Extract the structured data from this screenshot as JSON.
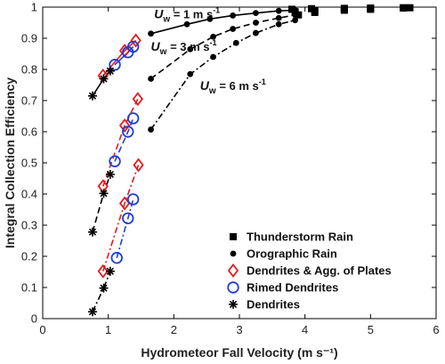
{
  "chart_data": {
    "type": "scatter",
    "xlabel": "Hydrometeor Fall Velocity (m s⁻¹)",
    "ylabel": "Integral Collection Efficiency",
    "xlim": [
      0,
      6
    ],
    "ylim": [
      0,
      1
    ],
    "xticks": [
      0,
      1,
      2,
      3,
      4,
      5,
      6
    ],
    "yticks": [
      0,
      0.1,
      0.2,
      0.3,
      0.4,
      0.5,
      0.6,
      0.7,
      0.8,
      0.9,
      1
    ],
    "grid": false,
    "legend_position": "bottom-right",
    "legend": [
      {
        "label": "Thunderstorm Rain",
        "marker": "square",
        "color": "#000000"
      },
      {
        "label": "Orographic Rain",
        "marker": "dot",
        "color": "#000000"
      },
      {
        "label": "Dendrites & Agg. of Plates",
        "marker": "diamond",
        "color": "#e41a1c"
      },
      {
        "label": "Rimed Dendrites",
        "marker": "circle",
        "color": "#1f3fd6"
      },
      {
        "label": "Dendrites",
        "marker": "asterisk",
        "color": "#000000"
      }
    ],
    "annotations": [
      {
        "label": "U",
        "sub": "w",
        "text": " = 1 m s",
        "sup": "-1",
        "ref_x": 1.7,
        "ref_y": 0.965
      },
      {
        "label": "U",
        "sub": "w",
        "text": " = 3 m s",
        "sup": "-1",
        "ref_x": 1.65,
        "ref_y": 0.86
      },
      {
        "label": "U",
        "sub": "w",
        "text": " = 6 m s",
        "sup": "-1",
        "ref_x": 2.4,
        "ref_y": 0.735
      }
    ],
    "series": [
      {
        "name": "Thunderstorm Rain",
        "group": "Uw=1",
        "marker": "square",
        "color": "#000000",
        "line": "none",
        "x": [
          3.8,
          4.1,
          4.6,
          5.0,
          5.5,
          5.6
        ],
        "y": [
          0.993,
          0.995,
          0.996,
          0.997,
          0.998,
          0.998
        ]
      },
      {
        "name": "Thunderstorm Rain",
        "group": "Uw=3",
        "marker": "square",
        "color": "#000000",
        "line": "none",
        "x": [
          3.85,
          4.15,
          4.6,
          5.0,
          5.5
        ],
        "y": [
          0.985,
          0.99,
          0.993,
          0.995,
          0.997
        ]
      },
      {
        "name": "Thunderstorm Rain",
        "group": "Uw=6",
        "marker": "square",
        "color": "#000000",
        "line": "none",
        "x": [
          3.9,
          4.15,
          4.6,
          5.0
        ],
        "y": [
          0.975,
          0.983,
          0.99,
          0.993
        ]
      },
      {
        "name": "Orographic Rain",
        "group": "Uw=1",
        "marker": "dot",
        "color": "#000000",
        "line": "solid",
        "x": [
          1.65,
          2.2,
          2.55,
          2.9,
          3.25,
          3.6,
          3.85
        ],
        "y": [
          0.915,
          0.945,
          0.962,
          0.973,
          0.981,
          0.988,
          0.99
        ]
      },
      {
        "name": "Orographic Rain",
        "group": "Uw=3",
        "marker": "dot",
        "color": "#000000",
        "line": "dash",
        "x": [
          1.65,
          2.25,
          2.6,
          2.9,
          3.25,
          3.6,
          3.85
        ],
        "y": [
          0.77,
          0.865,
          0.905,
          0.93,
          0.95,
          0.965,
          0.975
        ]
      },
      {
        "name": "Orographic Rain",
        "group": "Uw=6",
        "marker": "dot",
        "color": "#000000",
        "line": "dashdot",
        "x": [
          1.65,
          2.25,
          2.6,
          2.95,
          3.25,
          3.6,
          3.85
        ],
        "y": [
          0.607,
          0.785,
          0.84,
          0.885,
          0.917,
          0.945,
          0.958
        ]
      },
      {
        "name": "Dendrites & Agg. of Plates",
        "group": "Uw=1",
        "marker": "diamond",
        "color": "#e41a1c",
        "line": "solid",
        "x": [
          0.92,
          1.25,
          1.42
        ],
        "y": [
          0.78,
          0.86,
          0.893
        ]
      },
      {
        "name": "Dendrites & Agg. of Plates",
        "group": "Uw=3",
        "marker": "diamond",
        "color": "#e41a1c",
        "line": "dash",
        "x": [
          0.92,
          1.25,
          1.45
        ],
        "y": [
          0.425,
          0.62,
          0.705
        ]
      },
      {
        "name": "Dendrites & Agg. of Plates",
        "group": "Uw=6",
        "marker": "diamond",
        "color": "#e41a1c",
        "line": "dashdot",
        "x": [
          0.92,
          1.25,
          1.46
        ],
        "y": [
          0.152,
          0.37,
          0.493
        ]
      },
      {
        "name": "Rimed Dendrites",
        "group": "Uw=1",
        "marker": "circle",
        "color": "#1f3fd6",
        "line": "solid",
        "x": [
          1.1,
          1.3,
          1.38
        ],
        "y": [
          0.815,
          0.855,
          0.873
        ]
      },
      {
        "name": "Rimed Dendrites",
        "group": "Uw=3",
        "marker": "circle",
        "color": "#1f3fd6",
        "line": "dash",
        "x": [
          1.1,
          1.3,
          1.38
        ],
        "y": [
          0.505,
          0.6,
          0.643
        ]
      },
      {
        "name": "Rimed Dendrites",
        "group": "Uw=6",
        "marker": "circle",
        "color": "#1f3fd6",
        "line": "dashdot",
        "x": [
          1.13,
          1.3,
          1.38
        ],
        "y": [
          0.195,
          0.322,
          0.383
        ]
      },
      {
        "name": "Dendrites",
        "group": "Uw=1",
        "marker": "asterisk",
        "color": "#000000",
        "line": "solid",
        "x": [
          0.76,
          0.93,
          1.03
        ],
        "y": [
          0.715,
          0.77,
          0.795
        ]
      },
      {
        "name": "Dendrites",
        "group": "Uw=3",
        "marker": "asterisk",
        "color": "#000000",
        "line": "dash",
        "x": [
          0.76,
          0.93,
          1.03
        ],
        "y": [
          0.278,
          0.402,
          0.463
        ]
      },
      {
        "name": "Dendrites",
        "group": "Uw=6",
        "marker": "asterisk",
        "color": "#000000",
        "line": "dashdot",
        "x": [
          0.76,
          0.93,
          1.03
        ],
        "y": [
          0.022,
          0.098,
          0.152
        ]
      }
    ]
  }
}
